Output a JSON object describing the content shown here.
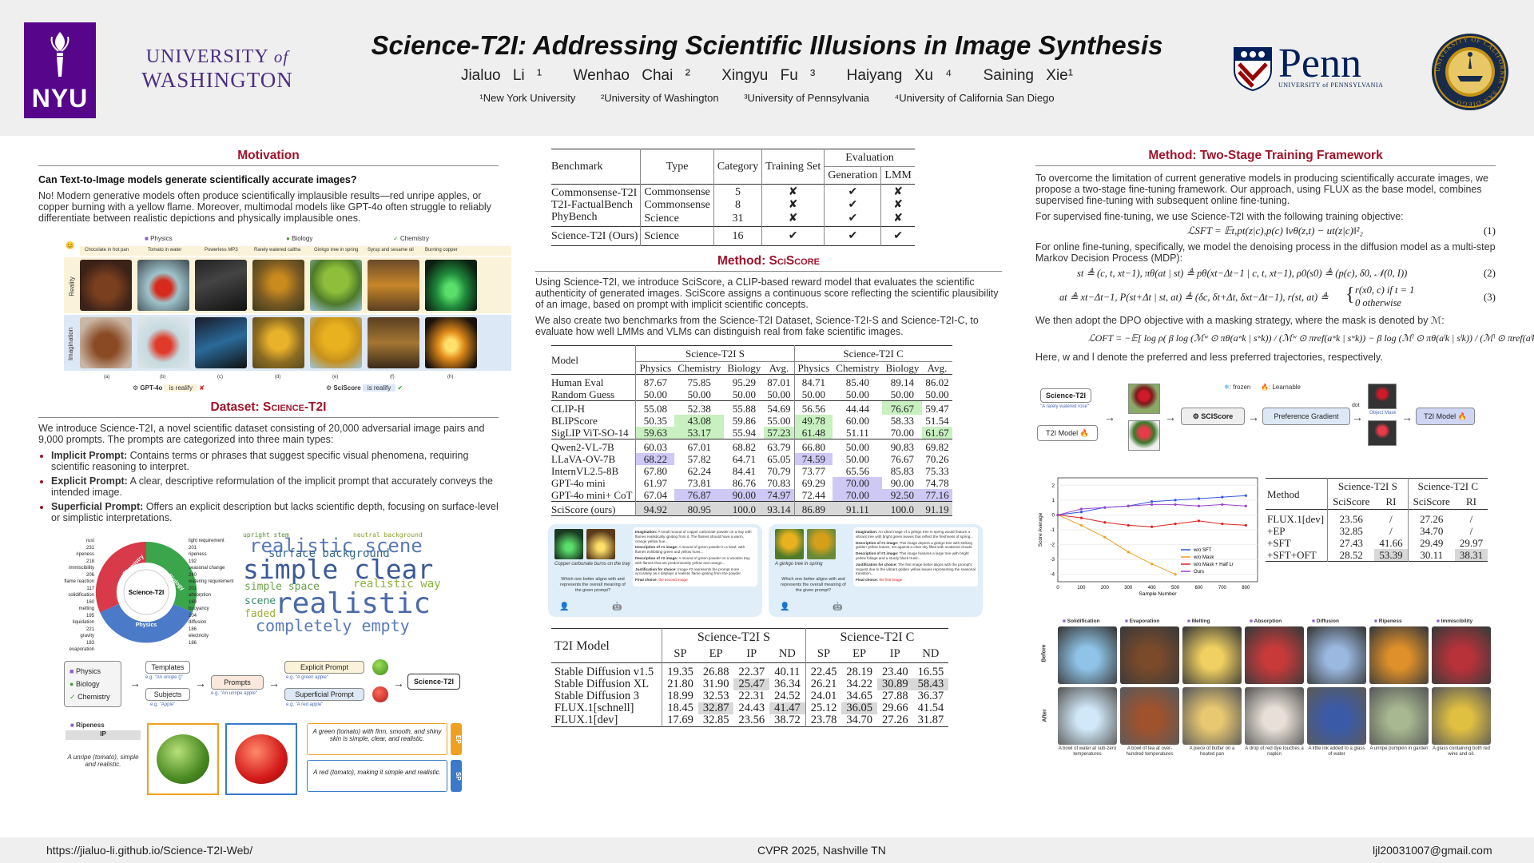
{
  "header": {
    "title": "Science-T2I: Addressing Scientific Illusions in Image Synthesis",
    "authors": [
      "Jialuo Li ¹",
      "Wenhao Chai ²",
      "Xingyu Fu ³",
      "Haiyang Xu ⁴",
      "Saining Xie¹"
    ],
    "affiliations": [
      "¹New York University",
      "²University of Washington",
      "³University of Pennsylvania",
      "⁴University of California San Diego"
    ],
    "logos": {
      "nyu": "NYU",
      "uw_line1": "UNIVERSITY",
      "uw_of": "of",
      "uw_line2": "WASHINGTON",
      "penn": "Penn",
      "penn_sub": "UNIVERSITY of PENNSYLVANIA",
      "ucsd_ring": "UNIVERSITY OF CALIFORNIA · SAN DIEGO"
    }
  },
  "footer": {
    "url": "https://jialuo-li.github.io/Science-T2I-Web/",
    "venue": "CVPR 2025, Nashville TN",
    "email": "ljl20031007@gmail.com"
  },
  "motivation": {
    "title": "Motivation",
    "question": "Can Text-to-Image models generate scientifically accurate images?",
    "body": "No! Modern generative models often produce scientifically implausible results—red unripe apples, or copper burning with a yellow flame. Moreover, multimodal models like GPT-4o often struggle to reliably differentiate between realistic depictions and physically implausible ones.",
    "categories": [
      "Physics",
      "Biology",
      "Chemistry"
    ],
    "captions": [
      "Chocolate in hot pan",
      "Tomato in water",
      "Powerless MP3",
      "Rarely watered caltha",
      "Ginkgo tree in spring",
      "Syrup and sesame oil",
      "Burning copper"
    ],
    "row_labels": [
      "Reality",
      "Imagination"
    ],
    "letters": [
      "(a)",
      "(b)",
      "(c)",
      "(d)",
      "(e)",
      "(f)",
      "(h)"
    ],
    "legend": {
      "gpt": "GPT-4o",
      "gpt_text": "is realify",
      "sci": "SciScore",
      "sci_text": "is realify"
    }
  },
  "dataset": {
    "title_prefix": "Dataset: ",
    "title_name": "Science-T2I",
    "intro": "We introduce Science-T2I, a novel scientific dataset consisting of 20,000 adversarial image pairs and 9,000 prompts. The prompts are categorized into three main types:",
    "types": [
      {
        "name": "Implicit Prompt:",
        "text": " Contains terms or phrases that suggest specific visual phenomena, requiring scientific reasoning to interpret."
      },
      {
        "name": "Explicit Prompt:",
        "text": " A clear, descriptive reformulation of the implicit prompt that accurately conveys the intended image."
      },
      {
        "name": "Superficial Prompt:",
        "text": " Offers an explicit description but lacks scientific depth, focusing on surface-level or simplistic interpretations."
      }
    ],
    "donut_center": "Science-T2I",
    "donut_segments": [
      "Chemistry",
      "Biology",
      "Physics"
    ],
    "donut_left": [
      "rust",
      "ripeness",
      "immiscibility",
      "flame reaction",
      "solidification",
      "melting",
      "liquidation",
      "gravity",
      "evaporation"
    ],
    "donut_left_n": [
      "231",
      "218",
      "206",
      "117",
      "160",
      "195",
      "221",
      "183",
      ""
    ],
    "donut_right": [
      "light requirement",
      "ripeness",
      "seasonal change",
      "watering requirement",
      "absorption",
      "buoyancy",
      "diffusion",
      "electricity"
    ],
    "donut_right_n": [
      "201",
      "192",
      "240",
      "201",
      "160",
      "204",
      "186",
      "186"
    ],
    "words": [
      "realistic scene",
      "simple clear",
      "surface background",
      "realistic way",
      "completely empty",
      "realistic",
      "simple space",
      "scene",
      "faded",
      "upright stem",
      "neutral background"
    ],
    "pipeline": {
      "cats": [
        "Physics",
        "Biology",
        "Chemistry"
      ],
      "templates": "Templates",
      "templates_eg": "e.g. \"An unripe {}\"",
      "subjects": "Subjects",
      "subjects_eg": "e.g. \"Apple\"",
      "prompts": "Prompts",
      "prompts_eg": "e.g. \"An unripe apple\"",
      "explicit": "Explicit Prompt",
      "explicit_eg": "e.g. \"A green apple\"",
      "superficial": "Superficial Prompt",
      "superficial_eg": "e.g. \"A red apple\"",
      "target": "Science-T2I"
    },
    "example": {
      "tag": "Ripeness",
      "ip": "IP",
      "ip_text": "A unripe (tomato), simple and realistic.",
      "ep_text": "A green (tomato) with firm, smooth, and shiny skin is simple, clear, and realistic.",
      "sp_text": "A red (tomato), making it simple and realistic.",
      "ep": "EP",
      "sp": "SP"
    }
  },
  "bench_table": {
    "headers": [
      "Benchmark",
      "Type",
      "Category",
      "Training Set",
      "Evaluation",
      "Generation",
      "LMM"
    ],
    "rows": [
      [
        "Commonsense-T2I",
        "Commonsense",
        "5",
        "✘",
        "✔",
        "✘"
      ],
      [
        "T2I-FactualBench",
        "Commonsense",
        "8",
        "✘",
        "✔",
        "✘"
      ],
      [
        "PhyBench",
        "Science",
        "31",
        "✘",
        "✔",
        "✘"
      ]
    ],
    "ours": [
      "Science-T2I (Ours)",
      "Science",
      "16",
      "✔",
      "✔",
      "✔"
    ]
  },
  "sciscore": {
    "title_prefix": "Method: ",
    "title_name": "SciScore",
    "p1": "Using Science-T2I, we introduce SciScore, a CLIP-based reward model that evaluates the scientific authenticity of generated images. SciScore assigns a continuous score reflecting the scientific plausibility of an image, based on prompt with implicit scientific concepts.",
    "p2": "We also create two benchmarks from the Science-T2I Dataset, Science-T2I-S and Science-T2I-C, to evaluate how well LMMs and VLMs can distinguish real from fake scientific images."
  },
  "model_table": {
    "headers": [
      "Model",
      "Science-T2I S",
      "Science-T2I C"
    ],
    "sub": [
      "Physics",
      "Chemistry",
      "Biology",
      "Avg.",
      "Physics",
      "Chemistry",
      "Biology",
      "Avg."
    ],
    "groups": [
      [
        [
          "Human Eval",
          "87.67",
          "75.85",
          "95.29",
          "87.01",
          "84.71",
          "85.40",
          "89.14",
          "86.02"
        ],
        [
          "Random Guess",
          "50.00",
          "50.00",
          "50.00",
          "50.00",
          "50.00",
          "50.00",
          "50.00",
          "50.00"
        ]
      ],
      [
        [
          "CLIP-H",
          "55.08",
          "52.38",
          "55.88",
          "54.69",
          "56.56",
          "44.44",
          "76.67",
          "59.47"
        ],
        [
          "BLIPScore",
          "50.35",
          "43.08",
          "59.86",
          "55.00",
          "49.78",
          "60.00",
          "58.33",
          "51.54"
        ],
        [
          "SigLIP ViT-SO-14",
          "59.63",
          "53.17",
          "55.94",
          "57.23",
          "61.48",
          "51.11",
          "70.00",
          "61.67"
        ]
      ],
      [
        [
          "Qwen2-VL-7B",
          "60.03",
          "67.01",
          "68.82",
          "63.79",
          "66.80",
          "50.00",
          "90.83",
          "69.82"
        ],
        [
          "LLaVA-OV-7B",
          "68.22",
          "57.82",
          "64.71",
          "65.05",
          "74.59",
          "50.00",
          "76.67",
          "70.26"
        ],
        [
          "InternVL2.5-8B",
          "67.80",
          "62.24",
          "84.41",
          "70.79",
          "73.77",
          "65.56",
          "85.83",
          "75.33"
        ],
        [
          "GPT-4o mini",
          "61.97",
          "73.81",
          "86.76",
          "70.83",
          "69.29",
          "70.00",
          "90.00",
          "74.78"
        ],
        [
          "GPT-4o mini+ CoT",
          "67.04",
          "76.87",
          "90.00",
          "74.97",
          "72.44",
          "70.00",
          "92.50",
          "77.16"
        ]
      ],
      [
        [
          "SciScore (ours)",
          "94.92",
          "80.95",
          "100.0",
          "93.14",
          "86.89",
          "91.11",
          "100.0",
          "91.19"
        ]
      ]
    ]
  },
  "reasoning": [
    {
      "img_caption": "Copper carbonate burns on the tray",
      "imagination": "Imagination:",
      "imagination_t": "A small mound of copper carbonate powder on a tray with flames realistically igniting from it. The flames should have a warm, orange yellow hue...",
      "d1": "Description of #1 image:",
      "d1_t": "A mound of green powder in a bowl, with flames exhibiting green and yellow hues...",
      "d2": "Description of #2 image:",
      "d2_t": "A mound of green powder on a wooden tray with flames that are predominantly yellow and orange...",
      "j": "Justification for choice:",
      "j_t": "Image #2 represents the prompt more accurately as it displays a realistic flame igniting from the powder.",
      "q": "Which one better aligns with and represents the overall meaning of the given prompt?",
      "f": "Final choice:",
      "f_t": "the second image"
    },
    {
      "img_caption": "A ginkgo tree in spring",
      "imagination": "Imagination:",
      "imagination_t": "An ideal image of a ginkgo tree in spring would feature a vibrant tree with bright green leaves that reflect the freshness of spring...",
      "d1": "Description of #1 image:",
      "d1_t": "This image depicts a ginkgo tree with striking golden yellow leaves, set against a clear sky filled with scattered clouds.",
      "d2": "Description of #2 image:",
      "d2_t": "This image features a large tree with bright yellow foliage and a sturdy black trunk...",
      "j": "Justification for choice:",
      "j_t": "The first image better aligns with the prompt's request due to the vibrant golden yellow leaves representing the seasonal transition...",
      "q": "Which one better aligns with and represents the overall meaning of the given prompt?",
      "f": "Final choice:",
      "f_t": "the first image"
    }
  ],
  "t2i_table": {
    "headers": [
      "T2I Model",
      "Science-T2I S",
      "Science-T2I C"
    ],
    "sub": [
      "SP",
      "EP",
      "IP",
      "ND",
      "SP",
      "EP",
      "IP",
      "ND"
    ],
    "rows": [
      [
        "Stable Diffusion v1.5",
        "19.35",
        "26.88",
        "22.37",
        "40.11",
        "22.45",
        "28.19",
        "23.40",
        "16.55"
      ],
      [
        "Stable Diffusion XL",
        "21.80",
        "31.90",
        "25.47",
        "36.34",
        "26.21",
        "34.22",
        "30.89",
        "58.43"
      ],
      [
        "Stable Diffusion 3",
        "18.99",
        "32.53",
        "22.31",
        "24.52",
        "24.01",
        "34.65",
        "27.88",
        "36.37"
      ],
      [
        "FLUX.1[schnell]",
        "18.45",
        "32.87",
        "24.43",
        "41.47",
        "25.12",
        "36.05",
        "29.66",
        "41.54"
      ],
      [
        "FLUX.1[dev]",
        "17.69",
        "32.85",
        "23.56",
        "38.72",
        "23.78",
        "34.70",
        "27.26",
        "31.87"
      ]
    ]
  },
  "method": {
    "title": "Method: Two-Stage Training Framework",
    "p1": "To overcome the limitation of current generative models in producing scientifically accurate images, we propose a two-stage fine-tuning framework. Our approach, using FLUX as the base model, combines supervised fine-tuning with subsequent online fine-tuning.",
    "p2": "For supervised fine-tuning, we use Science-T2I with the following training objective:",
    "eq1": "ℒSFT = 𝔼t,pt(z|c),p(c) ‖vθ(z,t) − ut(z|c)‖²₂",
    "eq1n": "(1)",
    "p3": "For online fine-tuning, specifically, we model the denoising process in the diffusion model as a multi-step Markov Decision Process (MDP):",
    "eq2": "st ≜ (c, t, xt−1),  πθ(at | st) ≜ pθ(xt−Δt−1 | c, t, xt−1),  ρ0(s0) ≜ (p(c), δ0, 𝒩(0, I))",
    "eq2n": "(2)",
    "eq3a": "at ≜ xt−Δt−1,  P(st+Δt | st, at) ≜ (δc, δt+Δt, δxt−Δt−1),  r(st, at) ≜",
    "eq3b": "r(x0, c)   if t = 1",
    "eq3c": "0              otherwise",
    "eq3n": "(3)",
    "p4": "We then adopt the DPO objective with a masking strategy, where the mask is denoted by ℳ:",
    "eq4": "ℒOFT = −𝔼[ log ρ( β log (ℳʷ ⊙ πθ(aʷk | sʷk)) / (ℳʷ ⊙ πref(aʷk | sʷk)) − β log (ℳˡ ⊙ πθ(aˡk | sˡk)) / (ℳˡ ⊙ πref(aˡk | sˡk)) ) ]",
    "p5": "Here, w and l denote the preferred and less preferred trajectories, respectively.",
    "diagram": {
      "sci_t2i": "Science-T2I",
      "prompt": "\"A rarely watered rose\"",
      "t2i": "T2I Model",
      "frozen": ": frozen",
      "learnable": ": Learnable",
      "sciscore": "SCIScore",
      "pref": "Preference Gradient",
      "dot": "dot",
      "mask": "Object Mask",
      "t2i_out": "T2I Model"
    }
  },
  "chart_data": {
    "type": "line",
    "x": [
      0,
      100,
      200,
      300,
      400,
      500,
      600,
      700,
      800
    ],
    "xlabel": "Sample Number",
    "ylabel": "Score Average",
    "xlim": [
      0,
      850
    ],
    "ylim": [
      -4.5,
      2.5
    ],
    "series": [
      {
        "name": "w/o SFT",
        "color": "#3355dd",
        "values": [
          0.0,
          0.2,
          0.5,
          0.6,
          0.9,
          1.0,
          1.1,
          1.2,
          1.3
        ]
      },
      {
        "name": "w/o Mask",
        "color": "#f0a020",
        "values": [
          0.0,
          -0.7,
          -1.5,
          -2.5,
          -3.3,
          -4.0,
          null,
          null,
          null
        ]
      },
      {
        "name": "w/o Mask + Half Lr",
        "color": "#dd2222",
        "values": [
          0.0,
          -0.2,
          -0.5,
          -0.7,
          -0.8,
          -0.6,
          -0.4,
          -0.6,
          -0.7
        ]
      },
      {
        "name": "Ours",
        "color": "#9944cc",
        "values": [
          0.0,
          0.4,
          0.5,
          0.6,
          0.7,
          0.7,
          0.6,
          0.7,
          0.6
        ]
      }
    ]
  },
  "method_table": {
    "headers": [
      "Method",
      "Science-T2I S",
      "Science-T2I C"
    ],
    "sub": [
      "SciScore",
      "RI",
      "SciScore",
      "RI"
    ],
    "rows": [
      [
        "FLUX.1[dev]",
        "23.56",
        "/",
        "27.26",
        "/"
      ],
      [
        "+EP",
        "32.85",
        "/",
        "34.70",
        "/"
      ],
      [
        "+SFT",
        "27.43",
        "41.66",
        "29.49",
        "29.97"
      ],
      [
        "+SFT+OFT",
        "28.52",
        "53.39",
        "30.11",
        "38.31"
      ]
    ]
  },
  "before_after": {
    "cats": [
      "Solidification",
      "Evaporation",
      "Melting",
      "Absorption",
      "Diffusion",
      "Ripeness",
      "Immiscibility"
    ],
    "rows": [
      "Before",
      "After"
    ],
    "captions": [
      "A bowl of water at sub-zero temperatures",
      "A bowl of tea at over-hundred temperatures",
      "A piece of butter on a heated pan",
      "A drop of red dye touches a napkin",
      "A little ink added to a glass of water",
      "A unripe pumpkin in garden",
      "A glass containing both red wine and oil."
    ]
  }
}
